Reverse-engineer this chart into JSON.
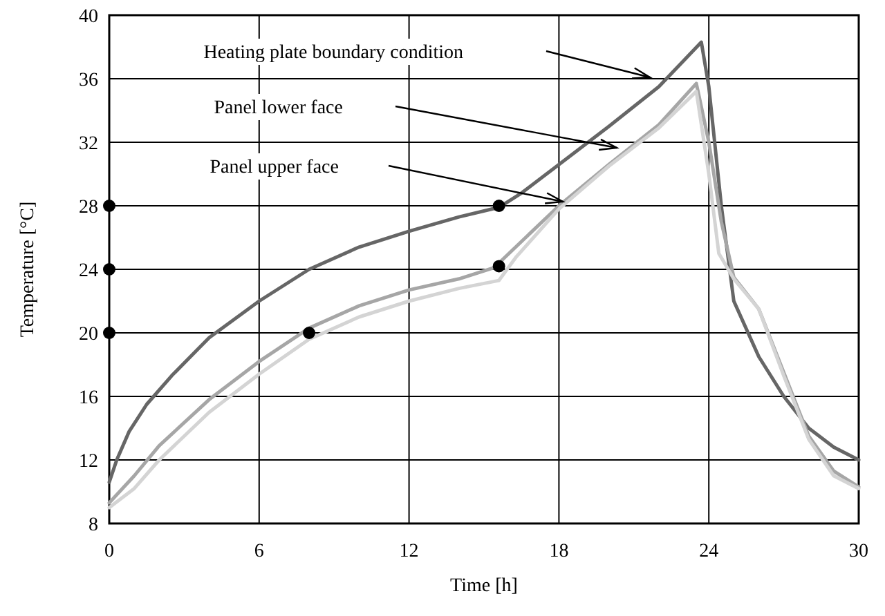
{
  "chart_data": {
    "type": "line",
    "xlabel": "Time [h]",
    "ylabel": "Temperature [°C]",
    "xlim": [
      0,
      30
    ],
    "ylim": [
      8,
      40
    ],
    "xticks": [
      0,
      6,
      12,
      18,
      24,
      30
    ],
    "yticks": [
      8,
      12,
      16,
      20,
      24,
      28,
      32,
      36,
      40
    ],
    "grid": true,
    "marker": "none",
    "line_style": "solid",
    "series": [
      {
        "color": "#666666",
        "x": [
          0,
          0.3,
          0.8,
          1.5,
          2.5,
          4,
          6,
          8,
          10,
          12,
          14,
          15.6,
          16.5,
          18,
          20,
          22,
          23.7,
          24,
          24.5,
          25,
          26,
          27,
          28,
          29,
          30
        ],
        "values": [
          10.6,
          12,
          13.8,
          15.5,
          17.3,
          19.7,
          22,
          24,
          25.4,
          26.4,
          27.3,
          27.9,
          28.8,
          30.6,
          33,
          35.5,
          38.3,
          35.5,
          28,
          22,
          18.5,
          16,
          14,
          12.8,
          12
        ]
      },
      {
        "color": "#a6a6a6",
        "x": [
          0,
          1,
          2,
          4,
          6,
          8,
          10,
          12,
          14,
          15.4,
          16,
          18,
          20,
          22,
          23.5,
          24,
          24.5,
          25,
          26,
          27,
          28,
          29,
          30
        ],
        "values": [
          9.3,
          11,
          12.9,
          15.8,
          18.2,
          20.3,
          21.7,
          22.7,
          23.4,
          24.1,
          25,
          28,
          30.6,
          33.1,
          35.7,
          32,
          27,
          23.5,
          21.5,
          17.5,
          13.5,
          11.3,
          10.3
        ]
      },
      {
        "color": "#d4d4d4",
        "x": [
          0,
          1,
          2,
          4,
          6,
          8,
          10,
          12,
          14,
          15.6,
          16.3,
          18,
          20,
          22,
          23.5,
          24,
          24.4,
          25,
          26,
          27,
          28,
          29,
          30
        ],
        "values": [
          9,
          10.2,
          12,
          15,
          17.4,
          19.6,
          21,
          22,
          22.8,
          23.3,
          24.8,
          27.8,
          30.5,
          32.9,
          35.2,
          30,
          25,
          23.4,
          21.5,
          17.3,
          13.3,
          11,
          10.2
        ]
      },
      {
        "type": "scatter",
        "marker": "circle",
        "color": "#000000",
        "x": [
          0,
          0,
          0,
          8,
          15.6,
          15.6
        ],
        "values": [
          28,
          24,
          20,
          20,
          28,
          24.2
        ]
      }
    ],
    "annotations": [
      "Heating plate boundary condition",
      "Panel lower face",
      "Panel upper face"
    ]
  }
}
